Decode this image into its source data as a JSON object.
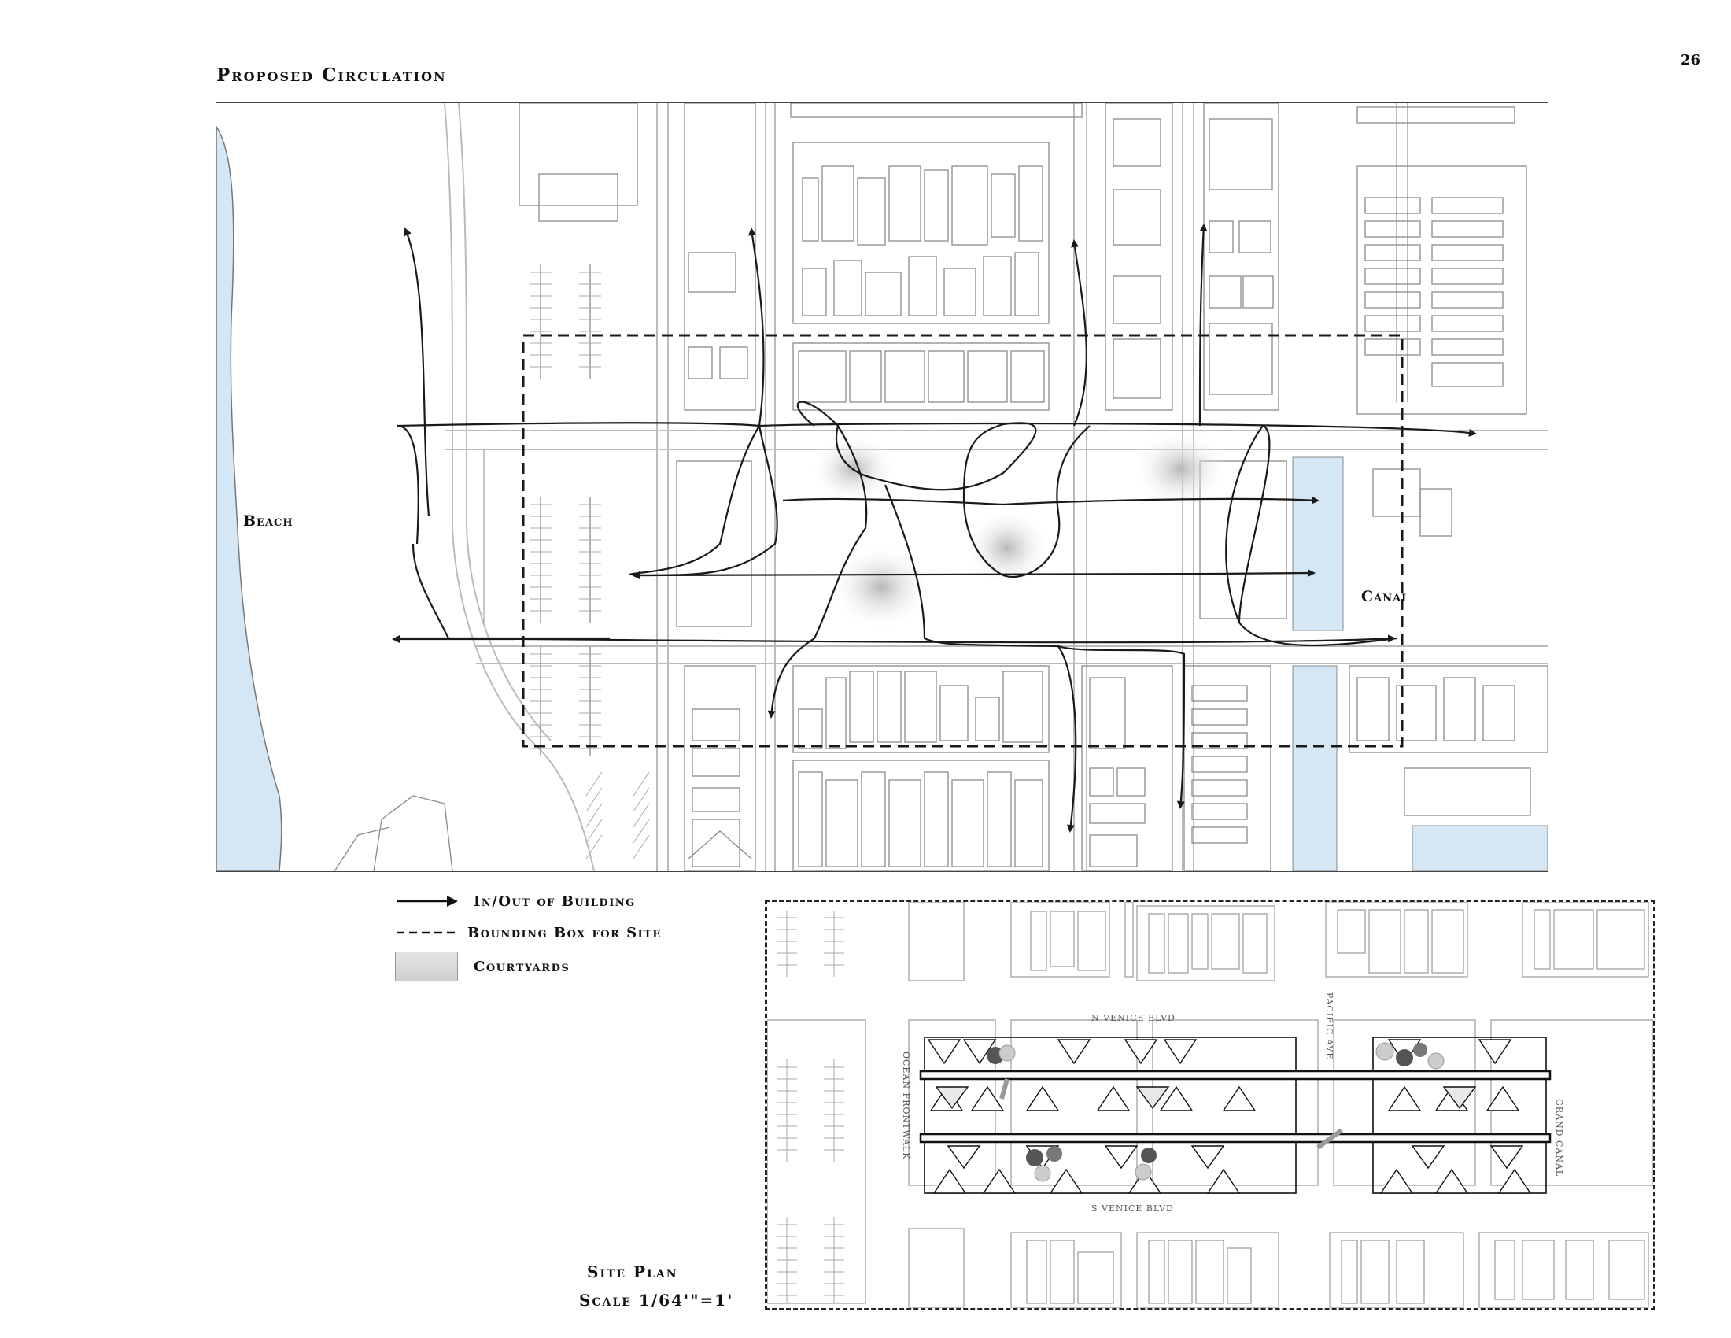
{
  "page": {
    "title": "Proposed Circulation",
    "page_number": "26"
  },
  "map": {
    "labels": {
      "beach": "Beach",
      "canal": "Canal"
    },
    "colors": {
      "water": "#d5e6f5",
      "building": "#888888",
      "street": "#bbbbbb",
      "path": "#1a1a1a",
      "courtyard": "#bcbcbc"
    }
  },
  "legend": {
    "items": [
      {
        "icon": "arrow-icon",
        "label": "In/Out of Building"
      },
      {
        "icon": "dashed-line-icon",
        "label": "Bounding Box for Site"
      },
      {
        "icon": "gray-swatch-icon",
        "label": "Courtyards"
      }
    ]
  },
  "site_plan": {
    "title": "Site Plan",
    "scale": "Scale 1/64'\"=1'",
    "streets": {
      "north": "N Venice Blvd",
      "south": "S Venice Blvd",
      "west": "Ocean Frontwalk",
      "middle": "Pacific Ave",
      "east": "Grand Canal"
    }
  }
}
